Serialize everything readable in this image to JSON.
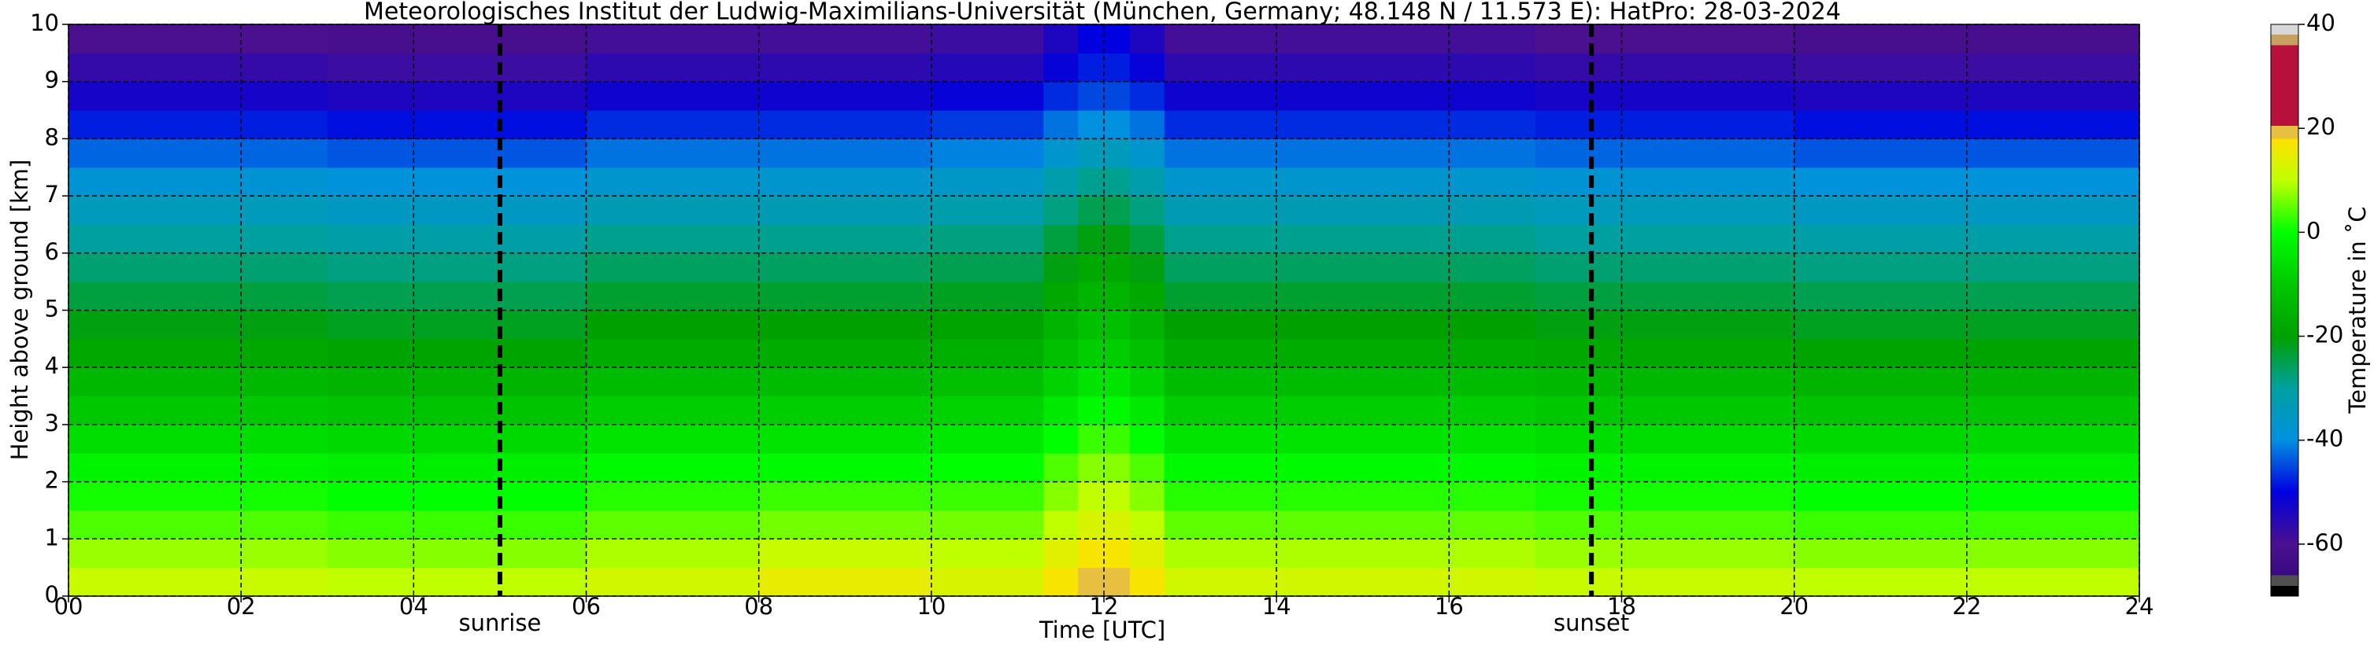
{
  "chart_data": {
    "type": "heatmap",
    "title": "Meteorologisches Institut der Ludwig-Maximilians-Universität (München, Germany; 48.148 N / 11.573 E):    HatPro: 28-03-2024",
    "xlabel": "Time [UTC]",
    "ylabel": "Height above ground [km]",
    "xlim": [
      0,
      24
    ],
    "xticks": [
      {
        "value": 0,
        "label": "00"
      },
      {
        "value": 2,
        "label": "02"
      },
      {
        "value": 4,
        "label": "04"
      },
      {
        "value": 6,
        "label": "06"
      },
      {
        "value": 8,
        "label": "08"
      },
      10,
      12,
      14,
      16,
      18,
      20,
      22,
      24
    ],
    "ylim": [
      0,
      10
    ],
    "yticks": [
      0,
      1,
      2,
      3,
      4,
      5,
      6,
      7,
      8,
      9,
      10
    ],
    "grid": true,
    "x": [
      0,
      3,
      6,
      8,
      10,
      11.3,
      11.7,
      12.3,
      12.7,
      14,
      17,
      20,
      24
    ],
    "y": [
      0,
      0.5,
      1,
      1.5,
      2,
      2.5,
      3,
      3.5,
      4,
      4.5,
      5,
      5.5,
      6,
      6.5,
      7,
      7.5,
      8,
      8.5,
      9,
      9.5,
      10
    ],
    "z": [
      [
        11,
        10,
        12,
        15,
        13,
        17,
        20,
        17,
        12,
        12,
        11,
        10
      ],
      [
        8,
        7,
        9,
        11,
        10,
        14,
        17,
        14,
        9,
        9,
        8,
        7
      ],
      [
        4,
        3,
        5,
        6,
        6,
        10,
        13,
        10,
        5,
        5,
        4,
        3
      ],
      [
        1,
        0,
        2,
        3,
        3,
        7,
        10,
        7,
        2,
        2,
        1,
        0
      ],
      [
        -2,
        -3,
        -1,
        -1,
        0,
        4,
        7,
        4,
        -1,
        -1,
        -2,
        -3
      ],
      [
        -6,
        -7,
        -5,
        -5,
        -4,
        0,
        3,
        0,
        -5,
        -5,
        -6,
        -7
      ],
      [
        -10,
        -11,
        -9,
        -9,
        -8,
        -4,
        -1,
        -4,
        -9,
        -9,
        -10,
        -11
      ],
      [
        -14,
        -15,
        -13,
        -13,
        -12,
        -8,
        -5,
        -8,
        -13,
        -13,
        -14,
        -15
      ],
      [
        -18,
        -19,
        -17,
        -17,
        -16,
        -12,
        -9,
        -12,
        -17,
        -17,
        -18,
        -19
      ],
      [
        -21,
        -22,
        -20,
        -20,
        -19,
        -15,
        -12,
        -15,
        -20,
        -20,
        -21,
        -22
      ],
      [
        -24,
        -25,
        -23,
        -23,
        -22,
        -18,
        -15,
        -18,
        -23,
        -23,
        -24,
        -25
      ],
      [
        -27,
        -28,
        -26,
        -26,
        -25,
        -21,
        -18,
        -21,
        -26,
        -26,
        -27,
        -28
      ],
      [
        -30,
        -31,
        -29,
        -29,
        -28,
        -24,
        -21,
        -24,
        -29,
        -29,
        -30,
        -31
      ],
      [
        -34,
        -35,
        -33,
        -33,
        -32,
        -28,
        -25,
        -28,
        -33,
        -33,
        -34,
        -35
      ],
      [
        -38,
        -39,
        -37,
        -37,
        -36,
        -32,
        -29,
        -32,
        -37,
        -37,
        -38,
        -39
      ],
      [
        -43,
        -44,
        -42,
        -42,
        -41,
        -37,
        -34,
        -37,
        -42,
        -42,
        -43,
        -44
      ],
      [
        -48,
        -49,
        -47,
        -47,
        -46,
        -42,
        -40,
        -42,
        -47,
        -47,
        -48,
        -49
      ],
      [
        -53,
        -54,
        -52,
        -52,
        -51,
        -47,
        -45,
        -47,
        -52,
        -52,
        -53,
        -54
      ],
      [
        -57,
        -58,
        -56,
        -56,
        -55,
        -51,
        -48,
        -51,
        -56,
        -56,
        -57,
        -58
      ],
      [
        -60,
        -61,
        -59,
        -59,
        -58,
        -54,
        -50,
        -54,
        -59,
        -59,
        -60,
        -61
      ]
    ],
    "colorbar_label": "Temperature in ˚C",
    "clim": [
      -70,
      40
    ],
    "cticks": [
      -60,
      -40,
      -20,
      0,
      20,
      40
    ],
    "colorscale": [
      [
        -70,
        "#000000"
      ],
      [
        -68,
        "#000000"
      ],
      [
        -68,
        "#505050"
      ],
      [
        -66,
        "#505050"
      ],
      [
        -66,
        "#3a0a80"
      ],
      [
        -60,
        "#4a1090"
      ],
      [
        -50,
        "#0000e0"
      ],
      [
        -40,
        "#0090e0"
      ],
      [
        -30,
        "#00a0a0"
      ],
      [
        -20,
        "#00a000"
      ],
      [
        -10,
        "#00c800"
      ],
      [
        0,
        "#00ff00"
      ],
      [
        10,
        "#c0ff00"
      ],
      [
        18,
        "#ffe000"
      ],
      [
        18,
        "#e8c040"
      ],
      [
        20.5,
        "#e8c040"
      ],
      [
        20.5,
        "#b8103c"
      ],
      [
        36,
        "#b8103c"
      ],
      [
        36,
        "#c8a060"
      ],
      [
        38,
        "#c8a060"
      ],
      [
        38,
        "#d8d8d8"
      ],
      [
        40,
        "#d8d8d8"
      ]
    ],
    "annotations": [
      {
        "text": "sunrise",
        "x": 5.0
      },
      {
        "text": "sunset",
        "x": 17.65
      }
    ]
  }
}
